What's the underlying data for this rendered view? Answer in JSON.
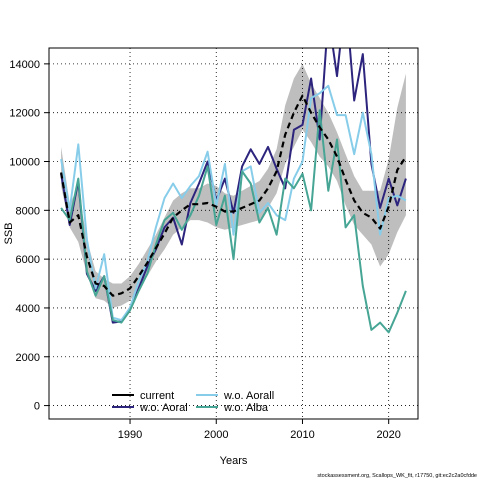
{
  "chart_data": {
    "type": "line",
    "xlabel": "Years",
    "ylabel": "SSB",
    "xlim": [
      1980.6,
      2023.4
    ],
    "ylim": [
      -550,
      14650
    ],
    "x_ticks": [
      1990,
      2000,
      2010,
      2020
    ],
    "y_ticks": [
      0,
      2000,
      4000,
      6000,
      8000,
      10000,
      12000,
      14000
    ],
    "grid": true,
    "legend_position": "bottom-center",
    "x": [
      1982,
      1983,
      1984,
      1985,
      1986,
      1987,
      1988,
      1989,
      1990,
      1991,
      1992,
      1993,
      1994,
      1995,
      1996,
      1997,
      1998,
      1999,
      2000,
      2001,
      2002,
      2003,
      2004,
      2005,
      2006,
      2007,
      2008,
      2009,
      2010,
      2011,
      2012,
      2013,
      2014,
      2015,
      2016,
      2017,
      2018,
      2019,
      2020,
      2021,
      2022
    ],
    "confidence_band": {
      "color": "#bebebe",
      "lower": [
        9000,
        7300,
        6700,
        5400,
        4400,
        4300,
        4000,
        4100,
        4300,
        4800,
        5300,
        5900,
        6400,
        7000,
        7300,
        7600,
        7600,
        7500,
        7300,
        7200,
        7300,
        7400,
        7500,
        7600,
        8100,
        8700,
        9900,
        10600,
        11300,
        10800,
        10200,
        9800,
        9200,
        8200,
        7400,
        7000,
        6600,
        5700,
        6200,
        7100,
        7800
      ],
      "upper": [
        10600,
        8300,
        8900,
        6800,
        5500,
        5200,
        5000,
        5000,
        5300,
        5800,
        6400,
        7000,
        7700,
        8400,
        8700,
        8900,
        8900,
        9100,
        9000,
        8700,
        8600,
        8800,
        9000,
        9200,
        9700,
        10500,
        12300,
        13400,
        14000,
        13200,
        12600,
        12000,
        11200,
        10300,
        9400,
        8800,
        8800,
        8800,
        10100,
        12200,
        13600
      ]
    },
    "series": [
      {
        "name": "current",
        "color": "#000000",
        "dash": "solid",
        "values": [
          9550,
          7500,
          7800,
          6100,
          5000,
          4900,
          4500,
          4600,
          4800,
          5300,
          5850,
          6450,
          7050,
          7700,
          8000,
          8250,
          8250,
          8300,
          8150,
          7950,
          7950,
          8100,
          8250,
          8400,
          8900,
          9600,
          11100,
          12000,
          12700,
          12000,
          11400,
          10900,
          10200,
          9250,
          8400,
          7900,
          7700,
          7250,
          8150,
          9650,
          10200
        ]
      },
      {
        "name": "w.o. Aoral",
        "color": "#2c247d",
        "dash": "solid",
        "values": [
          9500,
          7400,
          9200,
          5400,
          4700,
          5300,
          3400,
          3450,
          4000,
          4800,
          5700,
          6400,
          7300,
          7700,
          6600,
          8300,
          9100,
          10000,
          8400,
          9300,
          7900,
          9800,
          10500,
          9900,
          10600,
          9700,
          8900,
          11300,
          11500,
          13400,
          10900,
          16000,
          13500,
          16800,
          12500,
          14400,
          9900,
          8100,
          9300,
          8200,
          9300
        ]
      },
      {
        "name": "w.o. Aorall",
        "color": "#87cdea",
        "dash": "solid",
        "values": [
          10100,
          8000,
          10700,
          6800,
          4800,
          6200,
          3600,
          3500,
          4000,
          5100,
          5900,
          7300,
          8500,
          9100,
          8500,
          9000,
          9400,
          10400,
          8200,
          9900,
          7000,
          9600,
          9800,
          7900,
          8300,
          7800,
          7600,
          9300,
          10000,
          12600,
          12800,
          13100,
          11900,
          11900,
          10300,
          12000,
          10300,
          7000,
          8500,
          8600,
          8400
        ]
      },
      {
        "name": "w.o. Alba",
        "color": "#46a594",
        "dash": "solid",
        "values": [
          8100,
          7600,
          9300,
          5500,
          4500,
          5300,
          3500,
          3400,
          3900,
          4700,
          5400,
          6600,
          7600,
          7900,
          7200,
          7800,
          8600,
          9800,
          7400,
          8600,
          6000,
          9600,
          9100,
          7500,
          8100,
          7000,
          9300,
          8900,
          9500,
          8000,
          12100,
          8800,
          10900,
          7300,
          7800,
          4900,
          3100,
          3400,
          3000,
          3800,
          4700
        ]
      }
    ],
    "legend": {
      "entries": [
        "current",
        "w.o. Aoral",
        "w.o. Aorall",
        "w.o. Alba"
      ]
    }
  },
  "footer": "stockassessment.org, Scallops_WK_fit, r17750, git:ec2c2a0cfdde"
}
